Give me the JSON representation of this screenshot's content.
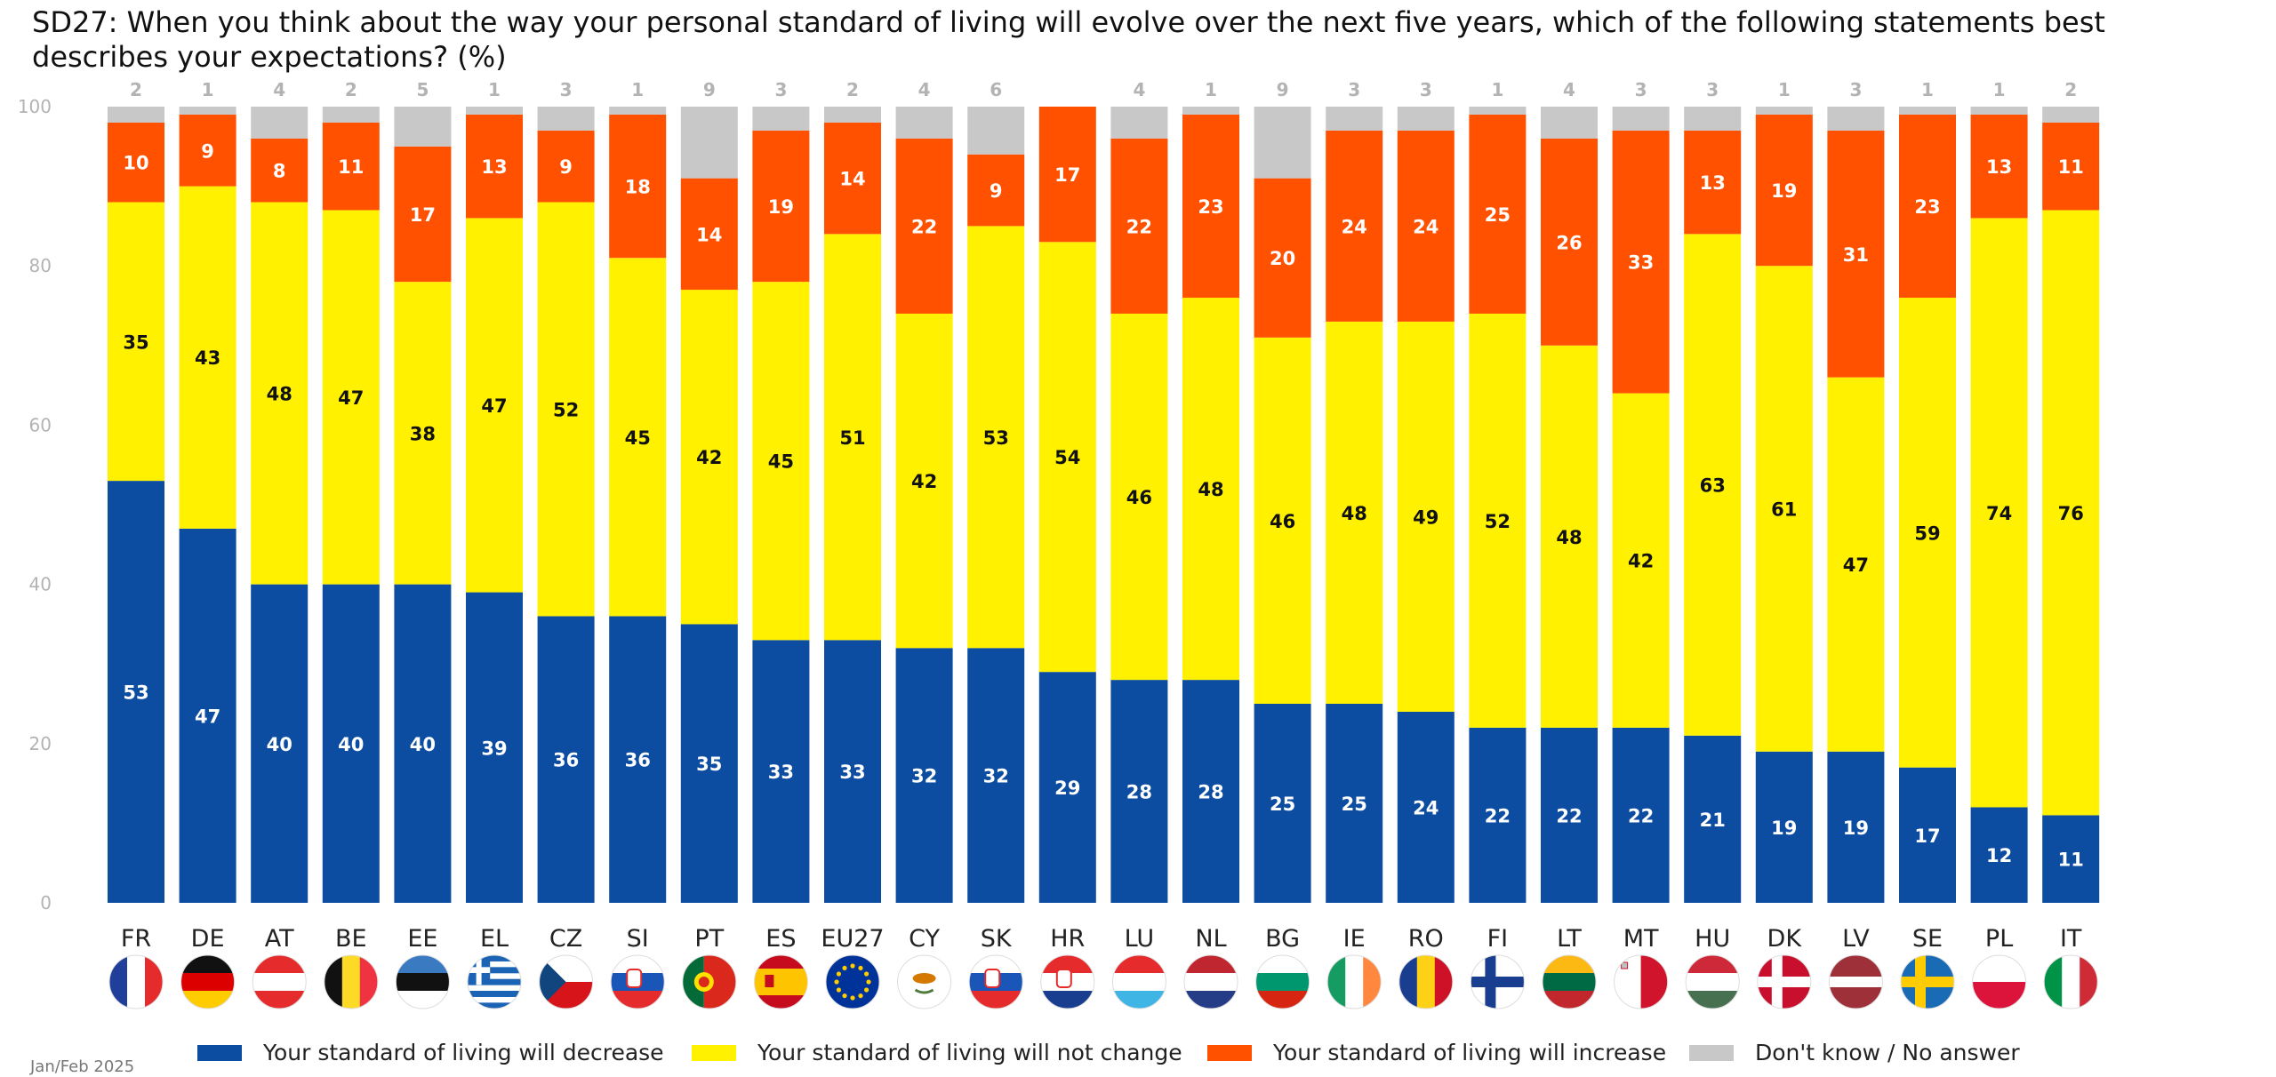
{
  "title": "SD27: When you think about the way your personal standard of living will evolve over the next five years, which of the following statements best describes your expectations? (%)",
  "footnote": "Jan/Feb 2025",
  "colors": {
    "decrease": "#0d4da1",
    "not_change": "#fff100",
    "increase": "#ff5100",
    "dont_know": "#c8c8c8"
  },
  "chart_data": {
    "type": "bar",
    "stacked": true,
    "title": "SD27: When you think about the way your personal standard of living will evolve over the next five years, which of the following statements best describes your expectations? (%)",
    "ylim": [
      0,
      100
    ],
    "yticks": [
      0,
      20,
      40,
      60,
      80,
      100
    ],
    "legend_position": "bottom",
    "categories": [
      "FR",
      "DE",
      "AT",
      "BE",
      "EE",
      "EL",
      "CZ",
      "SI",
      "PT",
      "ES",
      "EU27",
      "CY",
      "SK",
      "HR",
      "LU",
      "NL",
      "BG",
      "IE",
      "RO",
      "FI",
      "LT",
      "MT",
      "HU",
      "DK",
      "LV",
      "SE",
      "PL",
      "IT"
    ],
    "series": [
      {
        "name": "Your standard of living will decrease",
        "color": "#0d4da1",
        "values": [
          53,
          47,
          40,
          40,
          40,
          39,
          36,
          36,
          35,
          33,
          33,
          32,
          32,
          29,
          28,
          28,
          25,
          25,
          24,
          22,
          22,
          22,
          21,
          19,
          19,
          17,
          12,
          11
        ]
      },
      {
        "name": "Your standard of living will not change",
        "color": "#fff100",
        "values": [
          35,
          43,
          48,
          47,
          38,
          47,
          52,
          45,
          42,
          45,
          51,
          42,
          53,
          54,
          46,
          48,
          46,
          48,
          49,
          52,
          48,
          42,
          63,
          61,
          47,
          59,
          74,
          76
        ]
      },
      {
        "name": "Your standard of living will increase",
        "color": "#ff5100",
        "values": [
          10,
          9,
          8,
          11,
          17,
          13,
          9,
          18,
          14,
          19,
          14,
          22,
          9,
          17,
          22,
          23,
          20,
          24,
          24,
          25,
          26,
          33,
          13,
          19,
          31,
          23,
          13,
          11
        ]
      },
      {
        "name": "Don't know / No answer",
        "color": "#c8c8c8",
        "values": [
          2,
          1,
          4,
          2,
          5,
          1,
          3,
          1,
          9,
          3,
          2,
          4,
          6,
          0,
          4,
          1,
          9,
          3,
          3,
          1,
          4,
          3,
          3,
          1,
          3,
          1,
          1,
          2
        ]
      }
    ],
    "top_labels": [
      "2",
      "1",
      "4",
      "2",
      "5",
      "1",
      "3",
      "1",
      "9",
      "3",
      "2",
      "4",
      "6",
      "",
      "4",
      "1",
      "9",
      "3",
      "3",
      "1",
      "4",
      "3",
      "3",
      "1",
      "3",
      "1",
      "1",
      "2"
    ]
  },
  "flags": [
    "flag-fr-icon",
    "flag-de-icon",
    "flag-at-icon",
    "flag-be-icon",
    "flag-ee-icon",
    "flag-el-icon",
    "flag-cz-icon",
    "flag-si-icon",
    "flag-pt-icon",
    "flag-es-icon",
    "flag-eu27-icon",
    "flag-cy-icon",
    "flag-sk-icon",
    "flag-hr-icon",
    "flag-lu-icon",
    "flag-nl-icon",
    "flag-bg-icon",
    "flag-ie-icon",
    "flag-ro-icon",
    "flag-fi-icon",
    "flag-lt-icon",
    "flag-mt-icon",
    "flag-hu-icon",
    "flag-dk-icon",
    "flag-lv-icon",
    "flag-se-icon",
    "flag-pl-icon",
    "flag-it-icon"
  ]
}
